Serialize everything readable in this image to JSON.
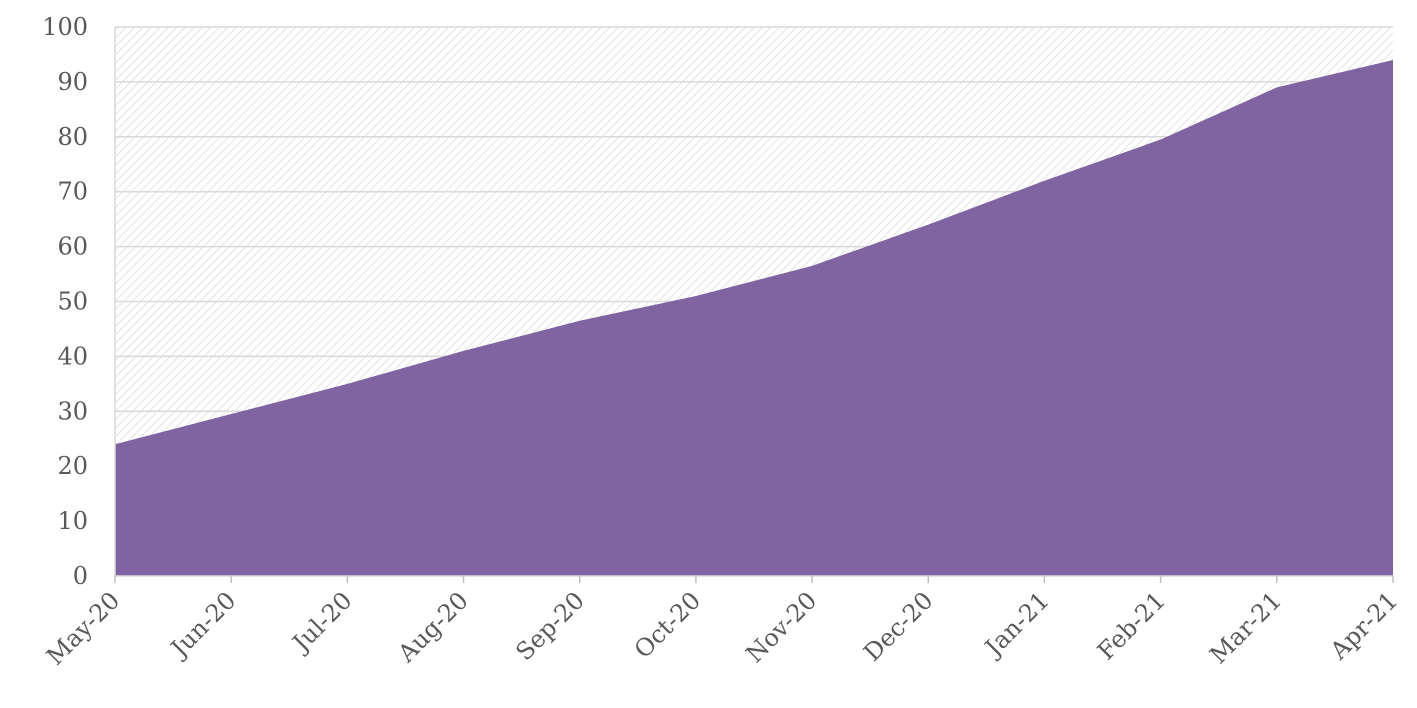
{
  "chart_data": {
    "type": "area",
    "title": "",
    "xlabel": "",
    "ylabel": "",
    "categories": [
      "May-20",
      "Jun-20",
      "Jul-20",
      "Aug-20",
      "Sep-20",
      "Oct-20",
      "Nov-20",
      "Dec-20",
      "Jan-21",
      "Feb-21",
      "Mar-21",
      "Apr-21"
    ],
    "series": [
      {
        "values": [
          24,
          29.5,
          35,
          41,
          46.5,
          51,
          56.5,
          64,
          72,
          79.5,
          89,
          94
        ],
        "color": "#8064a2"
      }
    ],
    "ylim": [
      0,
      100
    ],
    "yticks": [
      "0",
      "10",
      "20",
      "30",
      "40",
      "50",
      "60",
      "70",
      "80",
      "90",
      "100"
    ],
    "grid": true,
    "background_fill": "diagonal hatch",
    "legend": "none"
  }
}
